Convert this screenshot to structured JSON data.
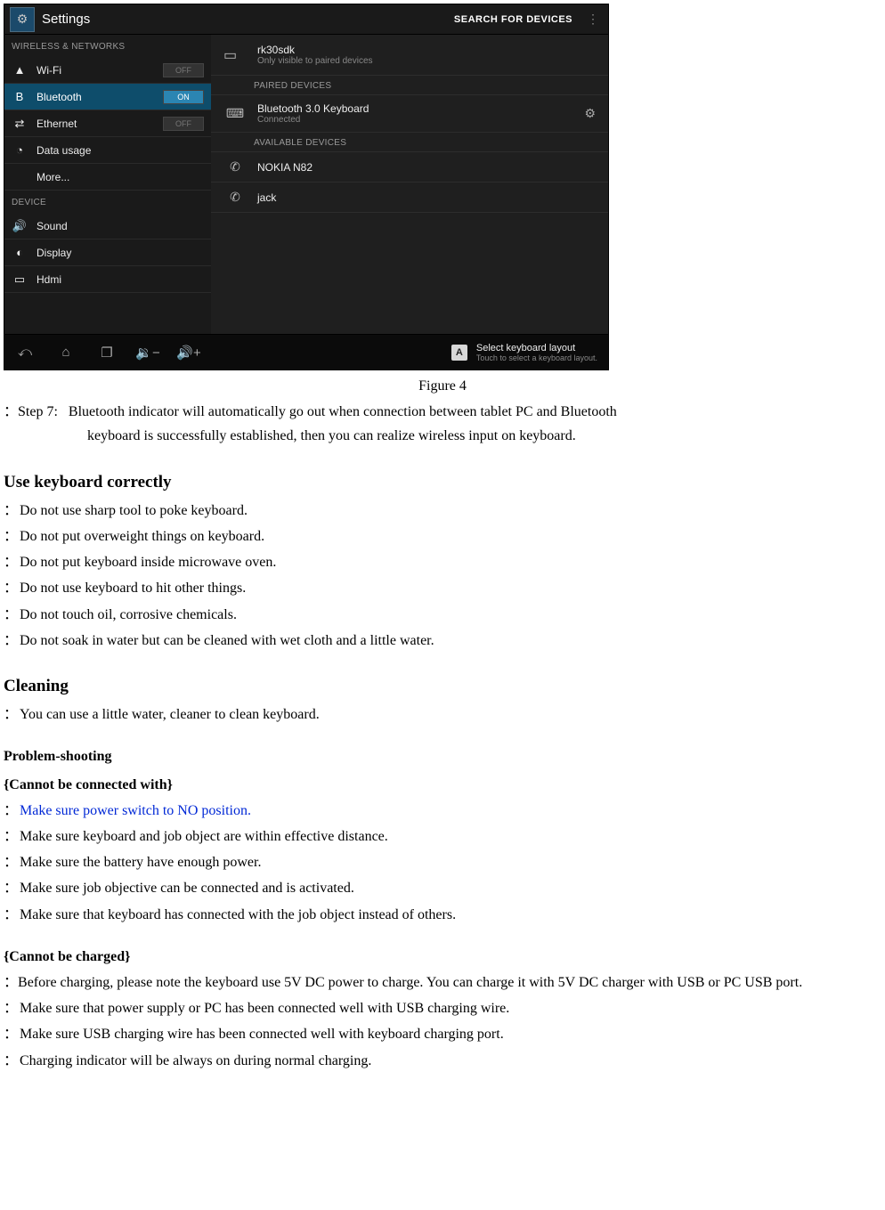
{
  "screenshot": {
    "topbar": {
      "title": "Settings",
      "search": "SEARCH FOR DEVICES"
    },
    "sidebar": {
      "section1": "WIRELESS & NETWORKS",
      "items1": [
        {
          "icon": "▲",
          "label": "Wi-Fi",
          "toggle": "OFF",
          "on": false
        },
        {
          "icon": "B",
          "label": "Bluetooth",
          "toggle": "ON",
          "on": true,
          "selected": true
        },
        {
          "icon": "⇄",
          "label": "Ethernet",
          "toggle": "OFF",
          "on": false
        },
        {
          "icon": "◔",
          "label": "Data usage"
        },
        {
          "label": "More..."
        }
      ],
      "section2": "DEVICE",
      "items2": [
        {
          "icon": "🔊",
          "label": "Sound"
        },
        {
          "icon": "◐",
          "label": "Display"
        },
        {
          "icon": "▭",
          "label": "Hdmi"
        }
      ]
    },
    "detail": {
      "this_device": {
        "name": "rk30sdk",
        "sub": "Only visible to paired devices",
        "icon": "▭"
      },
      "paired_header": "PAIRED DEVICES",
      "paired": [
        {
          "icon": "⌨",
          "name": "Bluetooth 3.0 Keyboard",
          "sub": "Connected",
          "sliders": "⚙"
        }
      ],
      "available_header": "AVAILABLE DEVICES",
      "available": [
        {
          "icon": "✆",
          "name": "NOKIA N82"
        },
        {
          "icon": "✆",
          "name": "jack"
        }
      ]
    },
    "navbar": {
      "buttons": [
        "⤺",
        "⌂",
        "❐",
        "🔉−",
        "🔊+"
      ],
      "notif": {
        "title": "Select keyboard layout",
        "sub": "Touch to select a keyboard layout.",
        "badge": "A"
      }
    }
  },
  "doc": {
    "figure_caption": "Figure 4",
    "bullet": "：",
    "step7_label": "Step 7:",
    "step7_text_l1": "Bluetooth indicator will automatically go out when connection between tablet PC and Bluetooth",
    "step7_text_l2": "keyboard is successfully established, then you can realize wireless input on keyboard.",
    "h_use": "Use keyboard correctly",
    "use_items": [
      "Do not use sharp tool to poke keyboard.",
      "Do not put overweight things on keyboard.",
      "Do not put keyboard inside microwave oven.",
      "Do not use keyboard to hit other things.",
      "Do not touch oil, corrosive chemicals.",
      "Do not soak in water but can be cleaned with wet cloth and a little water."
    ],
    "h_clean": "Cleaning",
    "clean_item": "You can use a little water, cleaner to clean keyboard.",
    "h_problem": "Problem-shooting",
    "h_cannot_connect": "{Cannot be connected with}",
    "connect_items": [
      {
        "text": "Make sure power switch to NO position.",
        "blue": true
      },
      {
        "text": "Make sure keyboard and job object are within effective distance."
      },
      {
        "text": "Make sure the battery have enough power."
      },
      {
        "text": "Make sure job objective can be connected and is activated."
      },
      {
        "text": "Make sure that keyboard has connected with the job object instead of others."
      }
    ],
    "h_cannot_charge": "{Cannot be charged}",
    "charge_para": "Before charging, please note the keyboard use 5V DC power to charge. You can charge it with 5V DC charger with USB or PC USB port.",
    "charge_items": [
      "Make sure that power supply or PC has been connected well with USB charging wire.",
      "Make sure USB charging wire has been connected well with keyboard charging port.",
      "Charging indicator will be always on during normal charging."
    ]
  }
}
